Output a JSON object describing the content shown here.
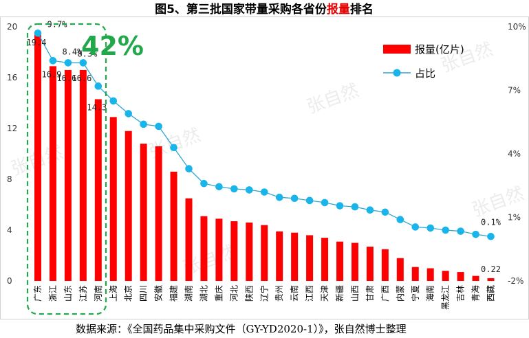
{
  "title": {
    "prefix": "图5、第三批国家带量采购各省份",
    "highlight": "报量",
    "suffix": "排名"
  },
  "source": "数据来源：《全国药品集中采购文件（GY-YD2020-1）》，张自然博士整理",
  "watermark": "张自然",
  "callout": "42%",
  "colors": {
    "bar": "#ff0000",
    "line": "#2ea6d6",
    "marker": "#19b4ea",
    "callout": "#22a84a"
  },
  "chart_data": {
    "type": "bar",
    "title": "图5、第三批国家带量采购各省份报量排名",
    "categories": [
      "广东",
      "浙江",
      "山东",
      "江苏",
      "河南",
      "上海",
      "北京",
      "四川",
      "安徽",
      "福建",
      "湖南",
      "湖北",
      "重庆",
      "河北",
      "陕西",
      "辽宁",
      "贵州",
      "云南",
      "江西",
      "天津",
      "新疆",
      "山西",
      "甘肃",
      "广西",
      "内蒙",
      "宁夏",
      "海南",
      "黑龙江",
      "吉林",
      "青海",
      "西藏"
    ],
    "series": [
      {
        "name": "报量(亿片)",
        "type": "bar",
        "axis": "left",
        "values": [
          19.4,
          16.9,
          16.6,
          16.6,
          14.3,
          12.9,
          11.8,
          10.8,
          10.6,
          8.6,
          6.5,
          5.1,
          4.9,
          4.7,
          4.6,
          4.4,
          3.9,
          3.8,
          3.6,
          3.4,
          3.1,
          3.0,
          2.7,
          2.5,
          1.8,
          1.1,
          1.0,
          0.8,
          0.7,
          0.4,
          0.22
        ]
      },
      {
        "name": "占比",
        "type": "line",
        "axis": "right",
        "values": [
          9.7,
          8.4,
          8.3,
          8.3,
          7.2,
          6.5,
          5.9,
          5.4,
          5.3,
          4.3,
          3.3,
          2.6,
          2.45,
          2.35,
          2.3,
          2.2,
          1.95,
          1.9,
          1.8,
          1.7,
          1.55,
          1.5,
          1.35,
          1.25,
          0.9,
          0.55,
          0.5,
          0.4,
          0.35,
          0.2,
          0.1
        ]
      }
    ],
    "data_labels_bar": [
      "19.4",
      "16.9",
      "16.6",
      "16.6",
      "14.3",
      "",
      "",
      "",
      "",
      "",
      "",
      "",
      "",
      "",
      "",
      "",
      "",
      "",
      "",
      "",
      "",
      "",
      "",
      "",
      "",
      "",
      "",
      "",
      "",
      "",
      "0.22"
    ],
    "data_labels_line": [
      "9.7%",
      "8.4%",
      "8.3%",
      "",
      "",
      "",
      "",
      "",
      "",
      "",
      "",
      "",
      "",
      "",
      "",
      "",
      "",
      "",
      "",
      "",
      "",
      "",
      "",
      "",
      "",
      "",
      "",
      "",
      "",
      "",
      "0.1%"
    ],
    "y_left": {
      "min": 0,
      "max": 20,
      "ticks": [
        "0",
        "4",
        "8",
        "12",
        "16",
        "20"
      ]
    },
    "y_right": {
      "min": -2,
      "max": 10,
      "ticks": [
        "-2%",
        "1%",
        "4%",
        "7%",
        "10%"
      ]
    },
    "legend_position": "top-right",
    "grid": false
  }
}
